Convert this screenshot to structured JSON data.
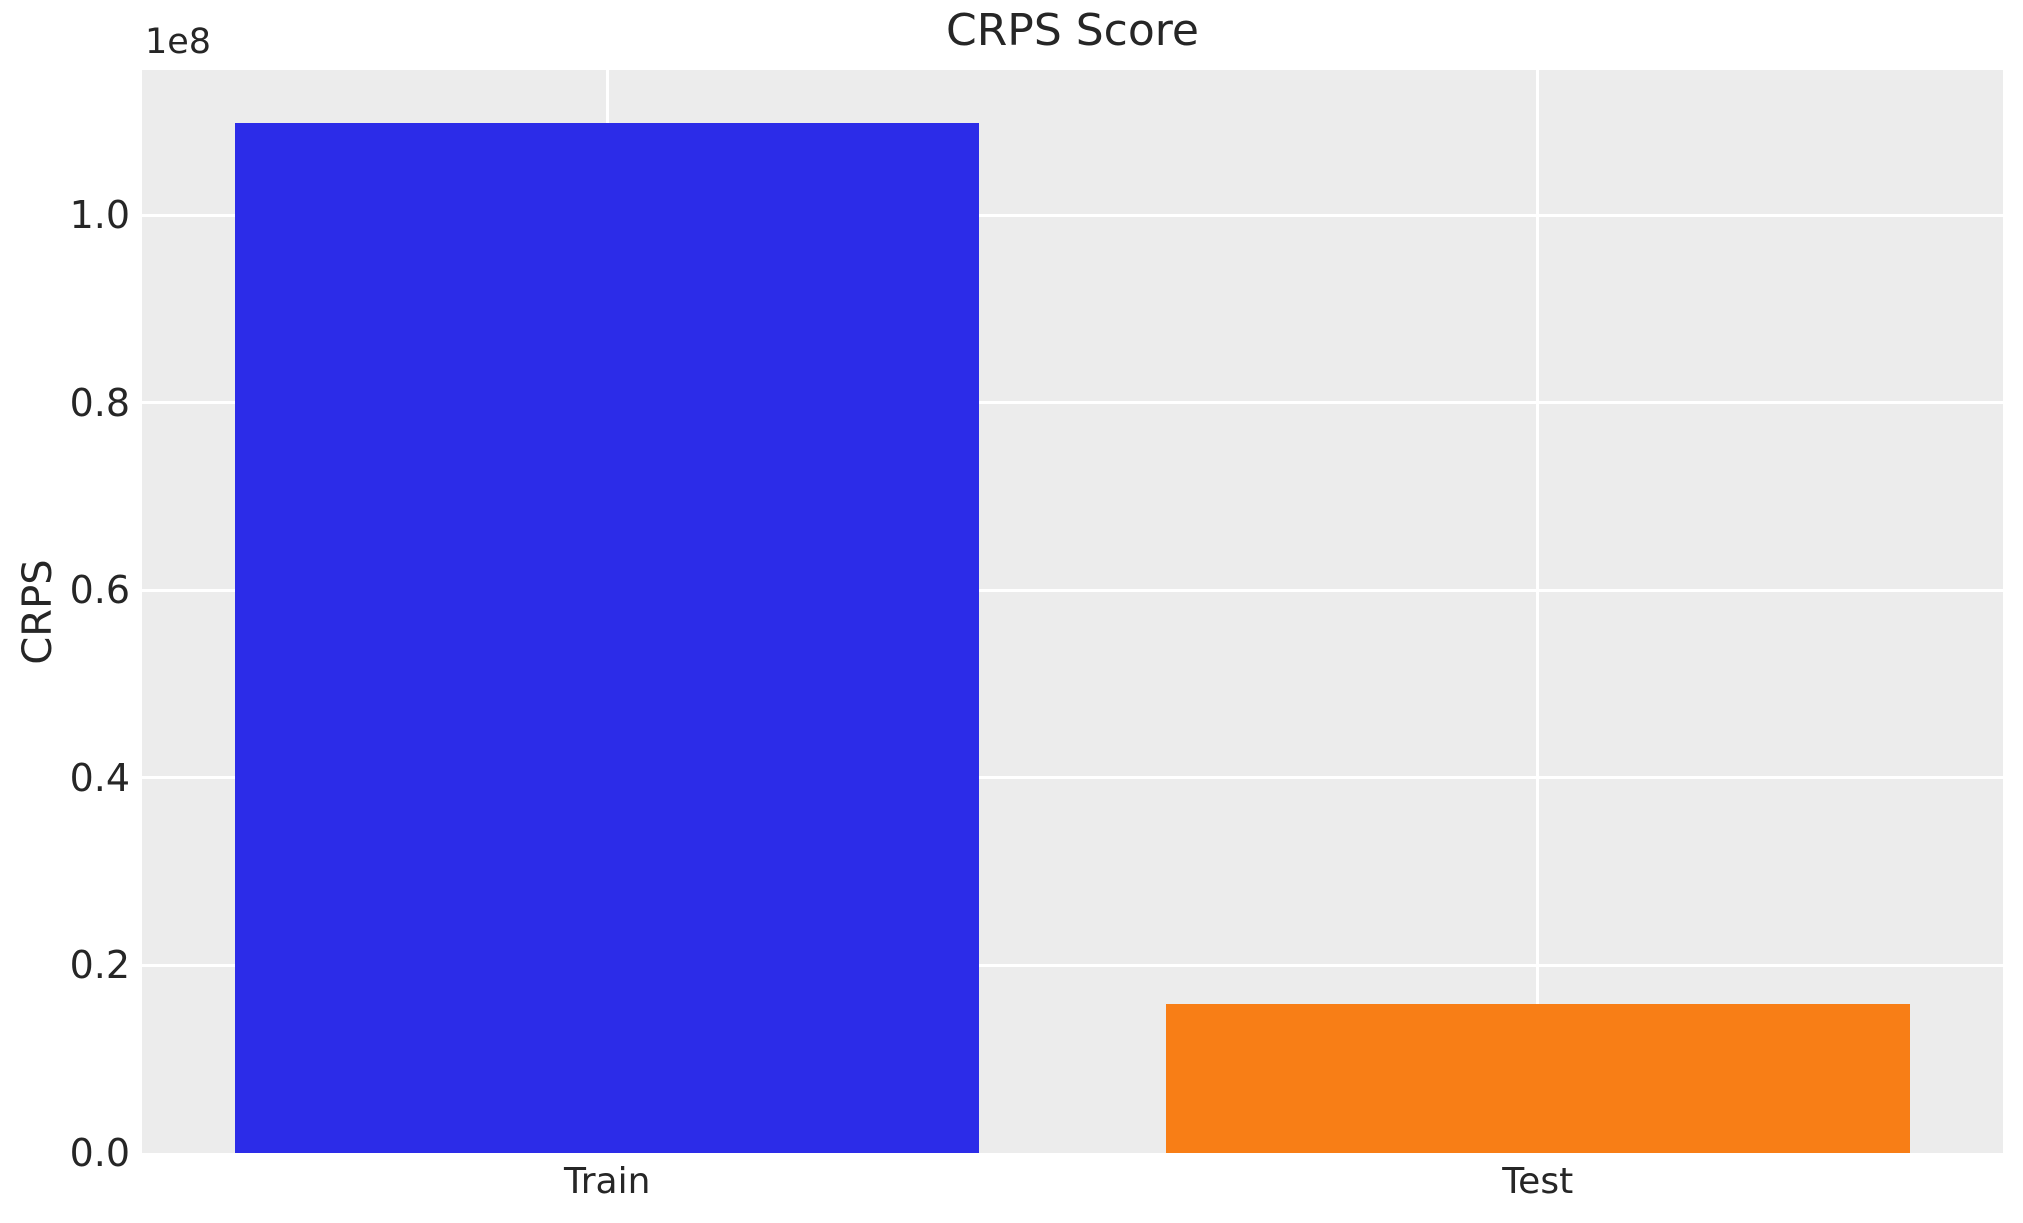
{
  "title": "CRPS Score",
  "axes": {
    "ylabel": "CRPS",
    "offset_text": "1e8"
  },
  "chart_data": {
    "type": "bar",
    "title": "CRPS Score",
    "xlabel": "",
    "ylabel": "CRPS",
    "categories": [
      "Train",
      "Test"
    ],
    "values": [
      109900000,
      15900000
    ],
    "bar_colors": [
      "#2c2ce8",
      "#f87e16"
    ],
    "ylim": [
      0,
      115500000
    ],
    "yticks": [
      0,
      20000000,
      40000000,
      60000000,
      80000000,
      100000000
    ],
    "ytick_labels": [
      "0.0",
      "0.2",
      "0.4",
      "0.6",
      "0.8",
      "1.0"
    ],
    "y_offset_text": "1e8",
    "bar_width_fraction": 0.8,
    "grid": true,
    "legend": false,
    "plot_bg_color": "#ececec",
    "grid_color": "#ffffff",
    "text_color": "#262626",
    "figure_bg_color": "#ffffff"
  }
}
